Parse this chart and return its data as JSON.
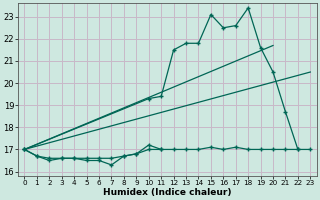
{
  "xlabel": "Humidex (Indice chaleur)",
  "bg_color": "#cee8e0",
  "grid_color": "#c8b8c8",
  "line_color": "#006655",
  "xlim": [
    -0.5,
    23.5
  ],
  "ylim": [
    15.8,
    23.6
  ],
  "yticks": [
    16,
    17,
    18,
    19,
    20,
    21,
    22,
    23
  ],
  "xticks": [
    0,
    1,
    2,
    3,
    4,
    5,
    6,
    7,
    8,
    9,
    10,
    11,
    12,
    13,
    14,
    15,
    16,
    17,
    18,
    19,
    20,
    21,
    22,
    23
  ],
  "line1_x": [
    0,
    1,
    2,
    3,
    4,
    5,
    6,
    7,
    8,
    9,
    10,
    11
  ],
  "line1_y": [
    17.0,
    16.7,
    16.5,
    16.6,
    16.6,
    16.5,
    16.5,
    16.3,
    16.7,
    16.8,
    17.2,
    17.0
  ],
  "line2_x": [
    0,
    1,
    2,
    3,
    4,
    5,
    6,
    7,
    8,
    9,
    10,
    11,
    12,
    13,
    14,
    15,
    16,
    17,
    18,
    19,
    20,
    21,
    22
  ],
  "line2_y": [
    17.0,
    16.7,
    16.6,
    16.6,
    16.6,
    16.6,
    16.6,
    16.6,
    16.7,
    16.8,
    17.0,
    17.0,
    17.0,
    17.0,
    17.0,
    17.1,
    17.0,
    17.1,
    17.0,
    17.0,
    17.0,
    17.0,
    17.0
  ],
  "line3_x": [
    0,
    10,
    11,
    12,
    13,
    14,
    15,
    16,
    17,
    18,
    19,
    20,
    21,
    22,
    23
  ],
  "line3_y": [
    17.0,
    19.3,
    19.4,
    21.5,
    21.8,
    21.8,
    23.1,
    22.5,
    22.6,
    23.4,
    21.6,
    20.5,
    18.7,
    17.0,
    17.0
  ],
  "line4_x": [
    0,
    23
  ],
  "line4_y": [
    17.0,
    20.5
  ],
  "line5_x": [
    0,
    20
  ],
  "line5_y": [
    17.0,
    21.7
  ]
}
